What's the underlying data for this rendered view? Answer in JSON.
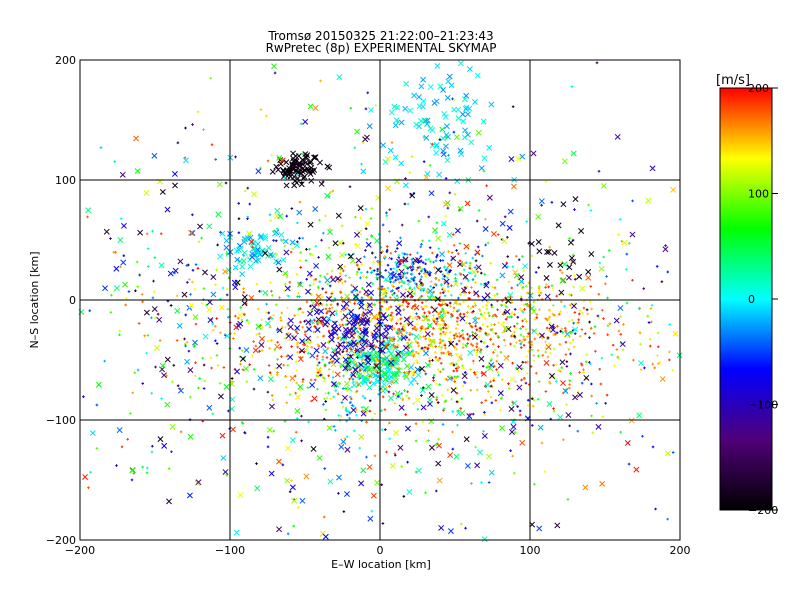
{
  "chart_data": {
    "type": "scatter",
    "title": "Tromsø 20150325 21:22:00–21:23:43",
    "subtitle": "RwPretec (8p) EXPERIMENTAL SKYMAP",
    "xlabel": "E–W location [km]",
    "ylabel": "N–S location [km]",
    "xlim": [
      -200,
      200
    ],
    "ylim": [
      -200,
      200
    ],
    "xticks": [
      -200,
      -100,
      0,
      100,
      200
    ],
    "yticks": [
      -200,
      -100,
      0,
      100,
      200
    ],
    "xtick_labels": [
      "−200",
      "−100",
      "0",
      "100",
      "200"
    ],
    "ytick_labels": [
      "−200",
      "−100",
      "0",
      "100",
      "200"
    ],
    "grid": true,
    "markers": [
      "x",
      "+"
    ],
    "colorbar": {
      "label": "[m/s]",
      "range": [
        -200,
        200
      ],
      "ticks": [
        -200,
        -100,
        0,
        100,
        200
      ],
      "tick_labels": [
        "−200",
        "−100",
        "0",
        "100",
        "200"
      ],
      "colormap": [
        "#000000",
        "#500078",
        "#0000ff",
        "#00ffff",
        "#00ff00",
        "#ffff00",
        "#ff0000"
      ]
    },
    "clusters": [
      {
        "x": -55,
        "y": 110,
        "sx": 8,
        "sy": 6,
        "n": 90,
        "vmin": -200,
        "vmax": -180,
        "marker": "x"
      },
      {
        "x": 35,
        "y": 150,
        "sx": 20,
        "sy": 25,
        "n": 90,
        "vmin": -30,
        "vmax": 20,
        "marker": "x"
      },
      {
        "x": 20,
        "y": 25,
        "sx": 15,
        "sy": 8,
        "n": 110,
        "vmin": -100,
        "vmax": -20,
        "marker": "+"
      },
      {
        "x": 25,
        "y": 20,
        "sx": 25,
        "sy": 12,
        "n": 110,
        "vmin": -30,
        "vmax": 30,
        "marker": "+"
      },
      {
        "x": 0,
        "y": -55,
        "sx": 12,
        "sy": 12,
        "n": 160,
        "vmin": -20,
        "vmax": 60,
        "marker": "x"
      },
      {
        "x": -20,
        "y": -80,
        "sx": 8,
        "sy": 15,
        "n": 40,
        "vmin": -40,
        "vmax": 20,
        "marker": "+"
      },
      {
        "x": -85,
        "y": 40,
        "sx": 12,
        "sy": 8,
        "n": 60,
        "vmin": -40,
        "vmax": 30,
        "marker": "x"
      },
      {
        "x": 30,
        "y": -25,
        "sx": 60,
        "sy": 25,
        "n": 900,
        "vmin": 120,
        "vmax": 200,
        "marker": "+"
      },
      {
        "x": 20,
        "y": -30,
        "sx": 75,
        "sy": 40,
        "n": 500,
        "vmin": 50,
        "vmax": 200,
        "marker": "+"
      },
      {
        "x": 0,
        "y": -20,
        "sx": 110,
        "sy": 80,
        "n": 700,
        "vmin": -200,
        "vmax": 200,
        "marker": "+"
      },
      {
        "x": 0,
        "y": -20,
        "sx": 110,
        "sy": 80,
        "n": 500,
        "vmin": -200,
        "vmax": 200,
        "marker": "x"
      },
      {
        "x": -20,
        "y": -25,
        "sx": 20,
        "sy": 15,
        "n": 120,
        "vmin": -120,
        "vmax": -60,
        "marker": "x"
      },
      {
        "x": 120,
        "y": 40,
        "sx": 10,
        "sy": 20,
        "n": 20,
        "vmin": -200,
        "vmax": -180,
        "marker": "x"
      }
    ]
  }
}
